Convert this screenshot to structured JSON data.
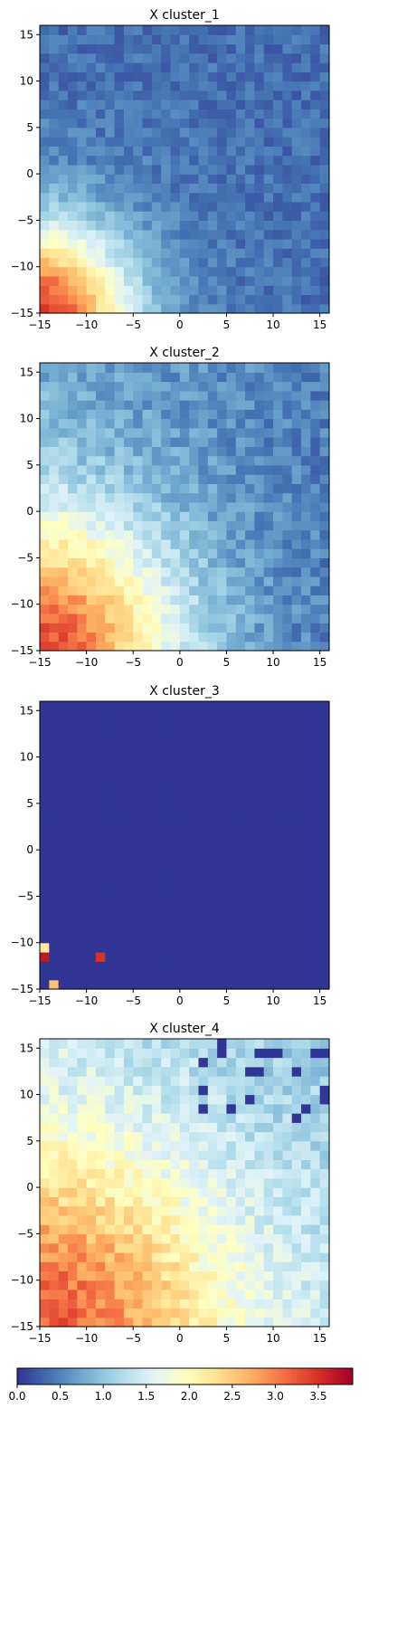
{
  "chart_data": [
    {
      "type": "heatmap",
      "title": "X cluster_1",
      "xlim": [
        -15,
        16
      ],
      "ylim": [
        -15,
        16
      ],
      "xticks": [
        -15,
        -10,
        -5,
        0,
        5,
        10,
        15
      ],
      "yticks": [
        -15,
        -10,
        -5,
        0,
        5,
        10,
        15
      ],
      "grid": false,
      "pattern": "Values highest (~2.5-3.8) in bottom-left corner, decreasing toward top-right (~0.2-0.6)"
    },
    {
      "type": "heatmap",
      "title": "X cluster_2",
      "xlim": [
        -15,
        16
      ],
      "ylim": [
        -15,
        16
      ],
      "xticks": [
        -15,
        -10,
        -5,
        0,
        5,
        10,
        15
      ],
      "yticks": [
        -15,
        -10,
        -5,
        0,
        5,
        10,
        15
      ],
      "grid": false,
      "pattern": "Broader warm region in bottom-left (~2-3.5), cooling toward top-right (~0.3-0.6)"
    },
    {
      "type": "heatmap",
      "title": "X cluster_3",
      "xlim": [
        -15,
        16
      ],
      "ylim": [
        -15,
        16
      ],
      "xticks": [
        -15,
        -10,
        -5,
        0,
        5,
        10,
        15
      ],
      "yticks": [
        -15,
        -10,
        -5,
        0,
        5,
        10,
        15
      ],
      "grid": false,
      "background_value": 0,
      "hot_cells": [
        {
          "x": -14.5,
          "y": -10.5,
          "value": 2.2
        },
        {
          "x": -14.5,
          "y": -11.5,
          "value": 3.7
        },
        {
          "x": -8.5,
          "y": -11.5,
          "value": 3.5
        },
        {
          "x": -13.5,
          "y": -14.5,
          "value": 2.6
        }
      ]
    },
    {
      "type": "heatmap",
      "title": "X cluster_4",
      "xlim": [
        -15,
        16
      ],
      "ylim": [
        -15,
        16
      ],
      "xticks": [
        -15,
        -10,
        -5,
        0,
        5,
        10,
        15
      ],
      "yticks": [
        -15,
        -10,
        -5,
        0,
        5,
        10,
        15
      ],
      "grid": false,
      "pattern": "Mostly mid values (~1.3-2.5), warmest bottom-left (~3-3.8), scattered near-zero cells in top-right"
    }
  ],
  "colorbar": {
    "cmap": "RdYlBu_r",
    "min": 0.0,
    "max": 3.9,
    "ticks": [
      "0.0",
      "0.5",
      "1.0",
      "1.5",
      "2.0",
      "2.5",
      "3.0",
      "3.5"
    ],
    "orientation": "horizontal"
  }
}
